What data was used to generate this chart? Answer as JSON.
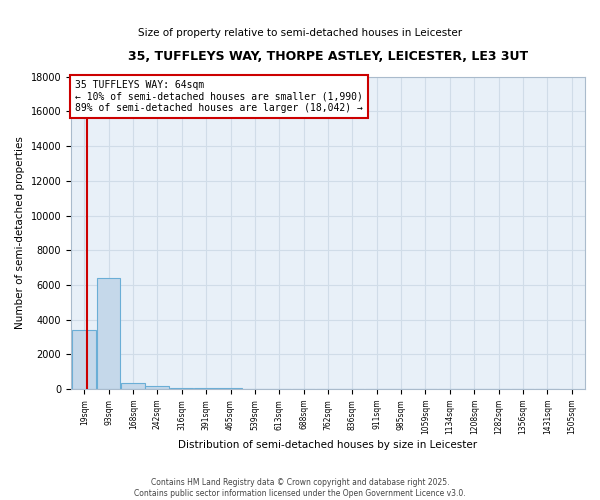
{
  "title": "35, TUFFLEYS WAY, THORPE ASTLEY, LEICESTER, LE3 3UT",
  "subtitle": "Size of property relative to semi-detached houses in Leicester",
  "xlabel": "Distribution of semi-detached houses by size in Leicester",
  "ylabel": "Number of semi-detached properties",
  "bar_edges": [
    19,
    93,
    168,
    242,
    316,
    391,
    465,
    539,
    613,
    688,
    762,
    836,
    911,
    985,
    1059,
    1134,
    1208,
    1282,
    1356,
    1431,
    1505
  ],
  "bar_heights": [
    3400,
    6400,
    380,
    160,
    90,
    60,
    40,
    30,
    22,
    15,
    12,
    10,
    8,
    7,
    6,
    5,
    4,
    3,
    3,
    2
  ],
  "bar_color": "#c5d8ea",
  "bar_edge_color": "#6aaed6",
  "property_size": 64,
  "property_label": "35 TUFFLEYS WAY: 64sqm",
  "pct_smaller": 10,
  "pct_larger": 89,
  "n_smaller": 1990,
  "n_larger": 18042,
  "ylim": [
    0,
    18000
  ],
  "ytick_step": 2000,
  "annotation_box_color": "#cc0000",
  "red_line_color": "#cc0000",
  "background_color": "#e8f0f8",
  "grid_color": "#d0dce8",
  "footer_line1": "Contains HM Land Registry data © Crown copyright and database right 2025.",
  "footer_line2": "Contains public sector information licensed under the Open Government Licence v3.0."
}
